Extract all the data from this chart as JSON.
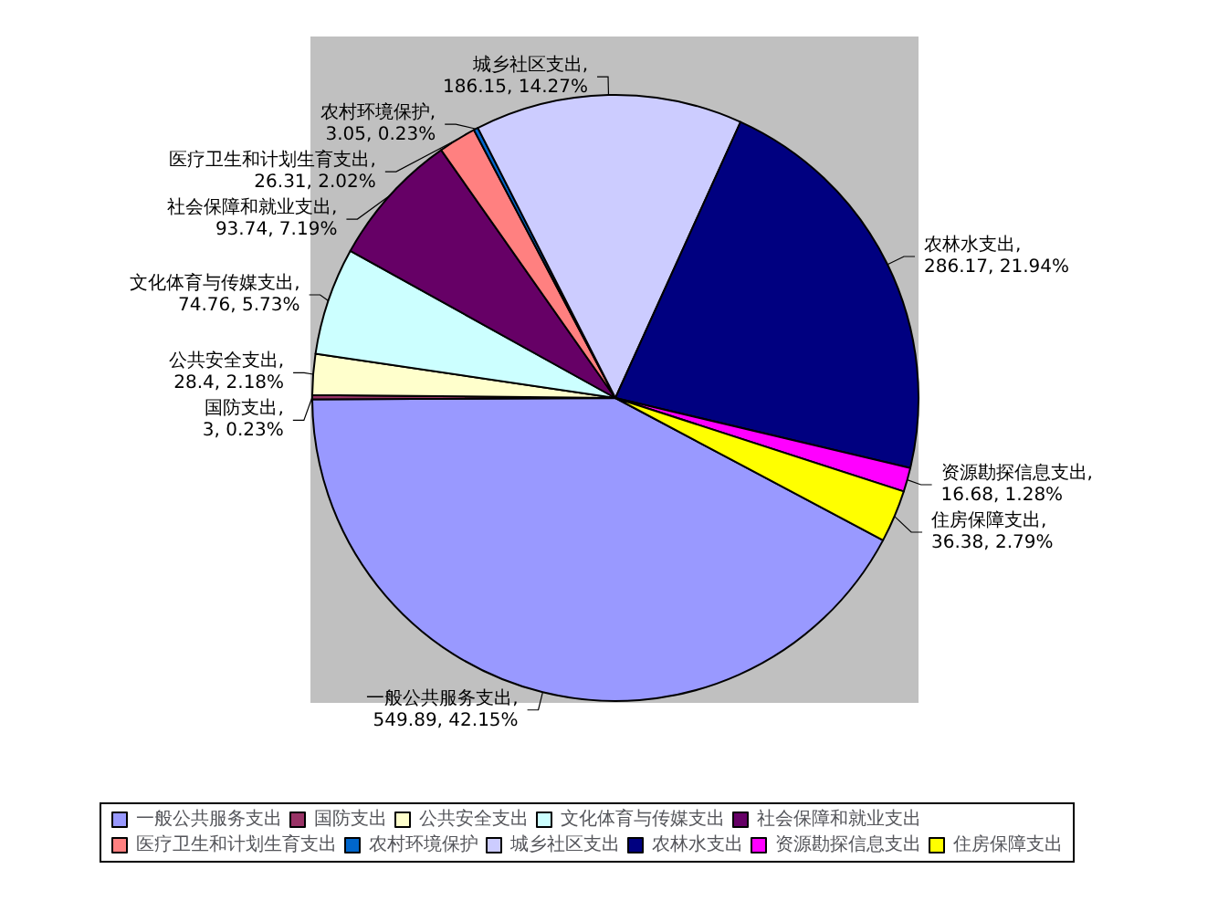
{
  "chart_data": {
    "type": "pie",
    "categories": [
      "一般公共服务支出",
      "国防支出",
      "公共安全支出",
      "文化体育与传媒支出",
      "社会保障和就业支出",
      "医疗卫生和计划生育支出",
      "农村环境保护",
      "城乡社区支出",
      "农林水支出",
      "资源勘探信息支出",
      "住房保障支出"
    ],
    "values": [
      549.89,
      3,
      28.4,
      74.76,
      93.74,
      26.31,
      3.05,
      186.15,
      286.17,
      16.68,
      36.38
    ],
    "value_labels": [
      "一般公共服务支出, 549.89, 42.15%",
      "国防支出, 3, 0.23%",
      "公共安全支出, 28.4, 2.18%",
      "文化体育与传媒支出, 74.76, 5.73%",
      "社会保障和就业支出, 93.74, 7.19%",
      "医疗卫生和计划生育支出, 26.31, 2.02%",
      "农村环境保护, 3.05, 0.23%",
      "城乡社区支出, 186.15, 14.27%",
      "农林水支出, 286.17, 21.94%",
      "资源勘探信息支出, 16.68, 1.28%",
      "住房保障支出, 36.38, 2.79%"
    ],
    "colors": [
      "#9999ff",
      "#993366",
      "#ffffcc",
      "#ccffff",
      "#660066",
      "#ff8080",
      "#0066cc",
      "#ccccff",
      "#000080",
      "#ff00ff",
      "#ffff00"
    ],
    "legend": "bottom"
  }
}
